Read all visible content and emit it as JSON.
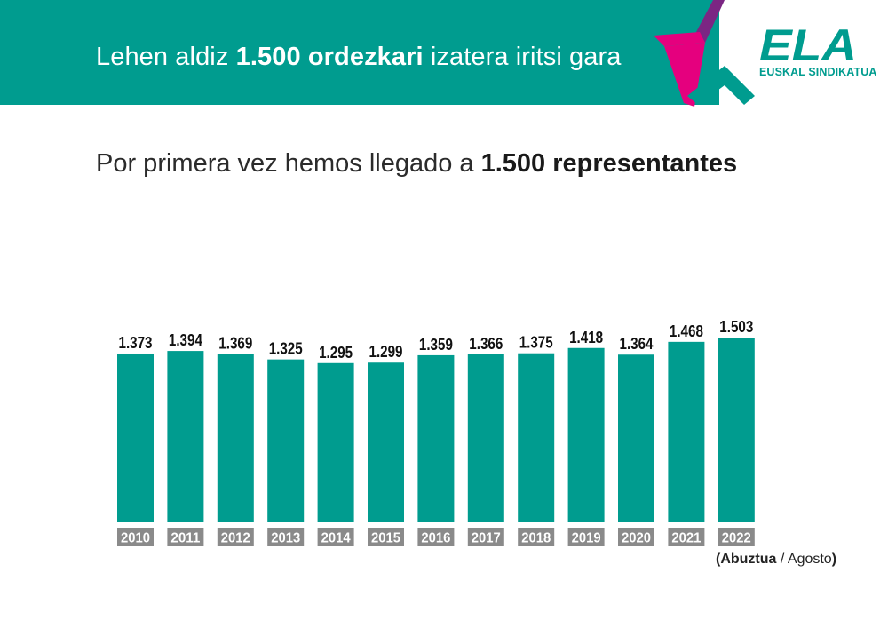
{
  "header": {
    "title_pre": "Lehen aldiz ",
    "title_bold": "1.500 ordezkari",
    "title_post": " izatera iritsi gara",
    "colors": {
      "teal": "#009c8f",
      "magenta": "#e5007e",
      "purple": "#7b2683"
    }
  },
  "logo": {
    "mark": "ELA",
    "name": "EUSKAL SINDIKATUA",
    "icon": "star-icon"
  },
  "subtitle": {
    "pre": "Por primera vez hemos llegado a ",
    "bold": "1.500 representantes"
  },
  "note": {
    "open": "(",
    "bold": "Abuztua",
    "sep": " / ",
    "rest": "Agosto",
    "close": ")"
  },
  "chart_data": {
    "type": "bar",
    "title": "Por primera vez hemos llegado a 1.500 representantes",
    "xlabel": "",
    "ylabel": "",
    "categories": [
      "2010",
      "2011",
      "2012",
      "2013",
      "2014",
      "2015",
      "2016",
      "2017",
      "2018",
      "2019",
      "2020",
      "2021",
      "2022"
    ],
    "values": [
      1373,
      1394,
      1369,
      1325,
      1295,
      1299,
      1359,
      1366,
      1375,
      1418,
      1364,
      1468,
      1503
    ],
    "data_labels": [
      "1.373",
      "1.394",
      "1.369",
      "1.325",
      "1.295",
      "1.299",
      "1.359",
      "1.366",
      "1.375",
      "1.418",
      "1.364",
      "1.468",
      "1.503"
    ],
    "ylim": [
      0,
      1503
    ],
    "grid": false,
    "legend": "none",
    "bar_color": "#009c8f",
    "tick_bg_color": "#8a8a8a"
  }
}
